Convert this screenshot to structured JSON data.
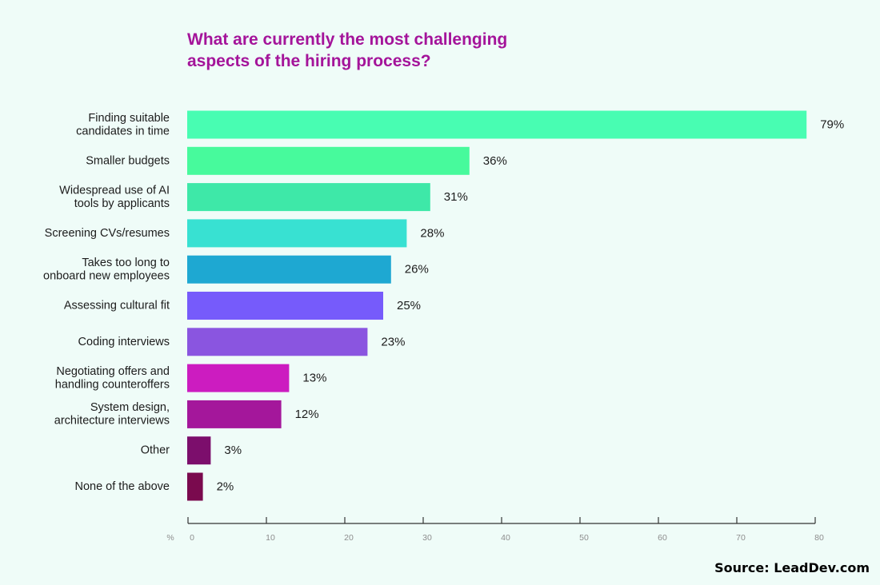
{
  "chart_data": {
    "type": "bar",
    "orientation": "horizontal",
    "title_lines": [
      "What are currently the most challenging",
      "aspects of the hiring process?"
    ],
    "categories": [
      [
        "Finding suitable",
        "candidates in time"
      ],
      [
        "Smaller budgets"
      ],
      [
        "Widespread use of AI",
        "tools by applicants"
      ],
      [
        "Screening CVs/resumes"
      ],
      [
        "Takes too long to",
        "onboard new employees"
      ],
      [
        "Assessing cultural fit"
      ],
      [
        "Coding interviews"
      ],
      [
        "Negotiating offers and",
        "handling counteroffers"
      ],
      [
        "System design,",
        "architecture interviews"
      ],
      [
        "Other"
      ],
      [
        "None of the above"
      ]
    ],
    "values": [
      79,
      36,
      31,
      28,
      26,
      25,
      23,
      13,
      12,
      3,
      2
    ],
    "value_labels": [
      "79%",
      "36%",
      "31%",
      "28%",
      "26%",
      "25%",
      "23%",
      "13%",
      "12%",
      "3%",
      "2%"
    ],
    "bar_colors": [
      "#48fdb2",
      "#47fa9c",
      "#3ee8a8",
      "#38e1d2",
      "#1ea8d2",
      "#765bfb",
      "#8a55e0",
      "#cc1cc0",
      "#a4179b",
      "#7c0e6c",
      "#7a0a4e"
    ],
    "xlabel": "%",
    "xlim": [
      0,
      80
    ],
    "xticks": [
      0,
      10,
      20,
      30,
      40,
      50,
      60,
      70,
      80
    ],
    "grid": false
  },
  "source": "Source: LeadDev.com",
  "colors": {
    "background": "#effcf8",
    "title": "#a4149a",
    "axis": "#333333",
    "tick_text": "#8d8d8d"
  }
}
